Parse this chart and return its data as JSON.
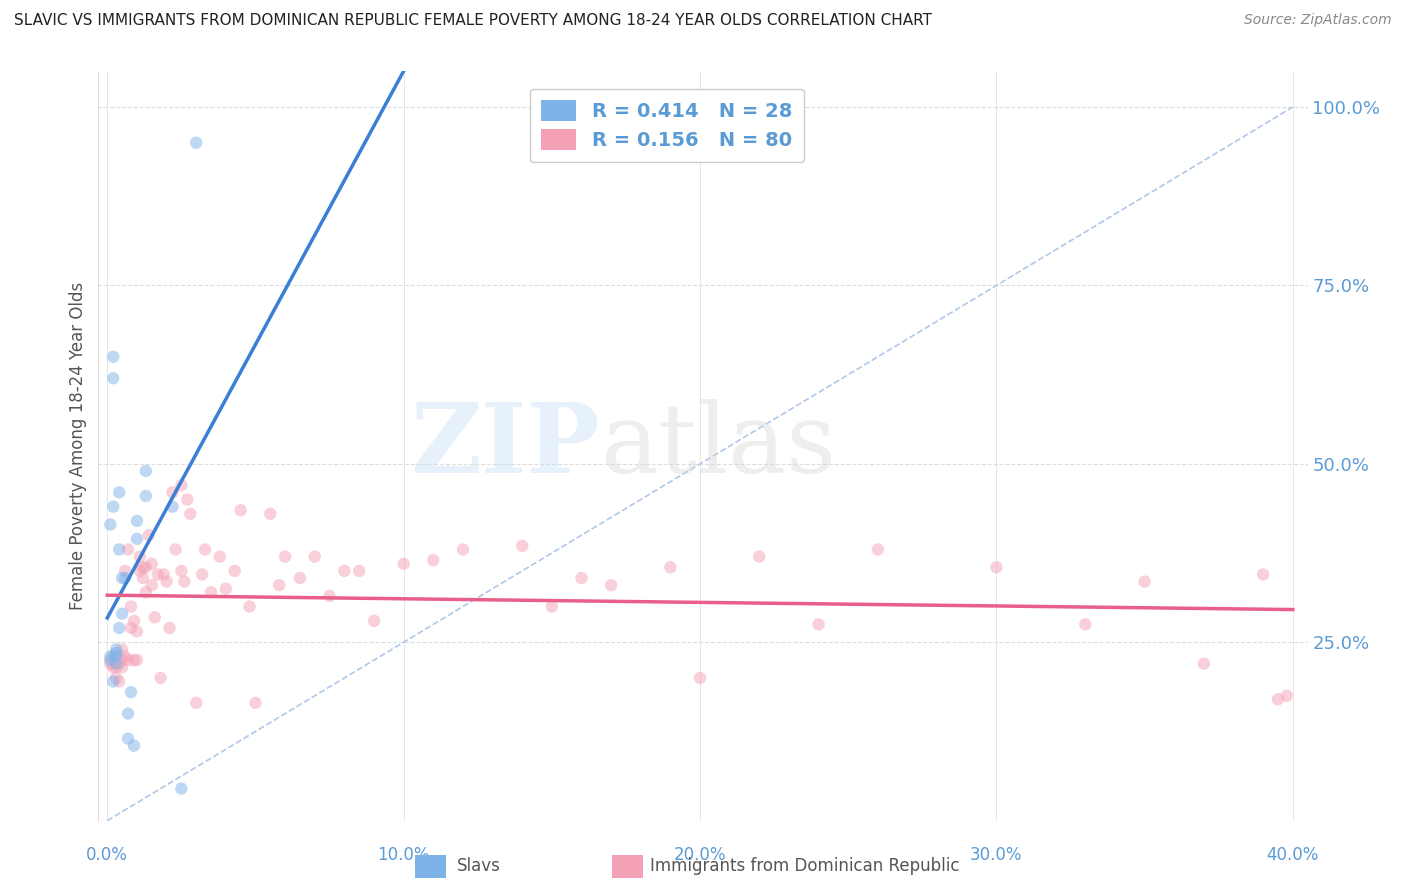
{
  "title": "SLAVIC VS IMMIGRANTS FROM DOMINICAN REPUBLIC FEMALE POVERTY AMONG 18-24 YEAR OLDS CORRELATION CHART",
  "source": "Source: ZipAtlas.com",
  "ylabel": "Female Poverty Among 18-24 Year Olds",
  "xmin": 0.0,
  "xmax": 0.4,
  "ymin": 0.0,
  "ymax": 1.05,
  "slavs_R": 0.414,
  "slavs_N": 28,
  "dr_R": 0.156,
  "dr_N": 80,
  "slavs_color": "#7eb3e8",
  "dr_color": "#f4a0b5",
  "slavs_trend_color": "#3a7fd5",
  "dr_trend_color": "#e85f8a",
  "diagonal_color": "#b0c8e8",
  "right_label_color": "#5b9bd5",
  "title_color": "#222222",
  "source_color": "#888888",
  "grid_color": "#dddddd",
  "axis_color": "#aaaaaa",
  "marker_size": 80,
  "marker_alpha": 0.5,
  "ytick_values": [
    0.25,
    0.5,
    0.75,
    1.0
  ],
  "ytick_labels": [
    "25.0%",
    "50.0%",
    "75.0%",
    "100.0%"
  ],
  "xtick_values": [
    0.0,
    0.1,
    0.2,
    0.3,
    0.4
  ],
  "xtick_labels": [
    "0.0%",
    "10.0%",
    "20.0%",
    "30.0%",
    "40.0%"
  ],
  "slavs_x": [
    0.001,
    0.001,
    0.001,
    0.002,
    0.002,
    0.002,
    0.002,
    0.003,
    0.003,
    0.003,
    0.003,
    0.004,
    0.004,
    0.004,
    0.005,
    0.005,
    0.006,
    0.007,
    0.007,
    0.008,
    0.009,
    0.01,
    0.01,
    0.013,
    0.013,
    0.022,
    0.025,
    0.03
  ],
  "slavs_y": [
    0.225,
    0.23,
    0.415,
    0.62,
    0.65,
    0.44,
    0.195,
    0.22,
    0.23,
    0.235,
    0.24,
    0.38,
    0.46,
    0.27,
    0.29,
    0.34,
    0.34,
    0.115,
    0.15,
    0.18,
    0.105,
    0.395,
    0.42,
    0.49,
    0.455,
    0.44,
    0.045,
    0.95
  ],
  "dr_x": [
    0.001,
    0.002,
    0.002,
    0.003,
    0.003,
    0.004,
    0.004,
    0.005,
    0.005,
    0.005,
    0.006,
    0.006,
    0.007,
    0.007,
    0.008,
    0.008,
    0.009,
    0.009,
    0.01,
    0.01,
    0.011,
    0.011,
    0.012,
    0.012,
    0.013,
    0.013,
    0.014,
    0.015,
    0.015,
    0.016,
    0.017,
    0.018,
    0.019,
    0.02,
    0.021,
    0.022,
    0.023,
    0.025,
    0.025,
    0.026,
    0.027,
    0.028,
    0.03,
    0.032,
    0.033,
    0.035,
    0.038,
    0.04,
    0.043,
    0.045,
    0.048,
    0.05,
    0.055,
    0.058,
    0.06,
    0.065,
    0.07,
    0.075,
    0.08,
    0.085,
    0.09,
    0.1,
    0.11,
    0.12,
    0.14,
    0.15,
    0.16,
    0.17,
    0.19,
    0.2,
    0.22,
    0.24,
    0.26,
    0.3,
    0.33,
    0.35,
    0.37,
    0.39,
    0.395,
    0.398
  ],
  "dr_y": [
    0.22,
    0.215,
    0.23,
    0.2,
    0.215,
    0.195,
    0.22,
    0.225,
    0.215,
    0.24,
    0.23,
    0.35,
    0.225,
    0.38,
    0.27,
    0.3,
    0.225,
    0.28,
    0.225,
    0.265,
    0.35,
    0.37,
    0.34,
    0.355,
    0.355,
    0.32,
    0.4,
    0.36,
    0.33,
    0.285,
    0.345,
    0.2,
    0.345,
    0.335,
    0.27,
    0.46,
    0.38,
    0.35,
    0.47,
    0.335,
    0.45,
    0.43,
    0.165,
    0.345,
    0.38,
    0.32,
    0.37,
    0.325,
    0.35,
    0.435,
    0.3,
    0.165,
    0.43,
    0.33,
    0.37,
    0.34,
    0.37,
    0.315,
    0.35,
    0.35,
    0.28,
    0.36,
    0.365,
    0.38,
    0.385,
    0.3,
    0.34,
    0.33,
    0.355,
    0.2,
    0.37,
    0.275,
    0.38,
    0.355,
    0.275,
    0.335,
    0.22,
    0.345,
    0.17,
    0.175
  ],
  "figsize": [
    14.06,
    8.92
  ],
  "dpi": 100
}
